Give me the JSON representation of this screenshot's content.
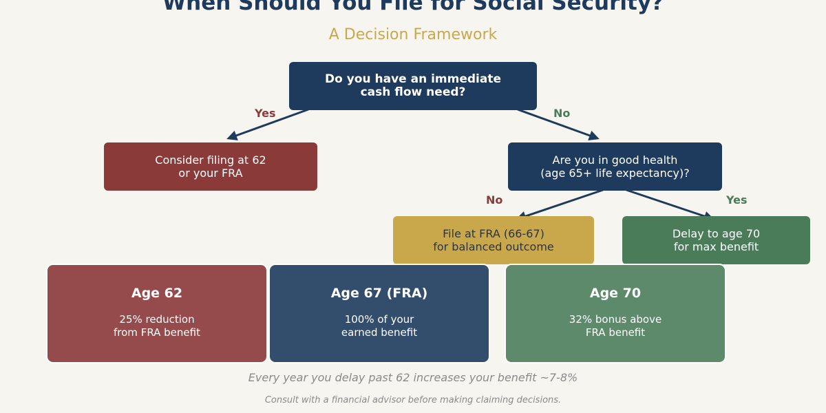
{
  "title": "When Should You File for Social Security?",
  "subtitle": "A Decision Framework",
  "nodes": {
    "root": {
      "line1": "Do you have an immediate",
      "line2": "cash flow need?"
    },
    "filing_62": {
      "line1": "Consider filing at 62",
      "line2": "or your FRA"
    },
    "health": {
      "line1": "Are you in good health",
      "line2": "(age 65+ life expectancy)?"
    },
    "file_fra": {
      "line1": "File at FRA (66-67)",
      "line2": "for balanced outcome"
    },
    "delay_70": {
      "line1": "Delay to age 70",
      "line2": "for max benefit"
    }
  },
  "edges": {
    "root_yes": "Yes",
    "root_no": "No",
    "health_no": "No",
    "health_yes": "Yes"
  },
  "cards": [
    {
      "title": "Age 62",
      "line1": "25% reduction",
      "line2": "from FRA benefit"
    },
    {
      "title": "Age 67 (FRA)",
      "line1": "100% of your",
      "line2": "earned benefit"
    },
    {
      "title": "Age 70",
      "line1": "32% bonus above",
      "line2": "FRA benefit"
    }
  ],
  "note": "Every year you delay past 62 increases your benefit ~7-8%",
  "disclaimer": "Consult with a financial advisor before making claiming decisions.",
  "colors": {
    "navy": "#1e3a5c",
    "red": "#8b3a3a",
    "gold": "#c9a84c",
    "green": "#4a7c59",
    "background": "#f7f5f0"
  }
}
